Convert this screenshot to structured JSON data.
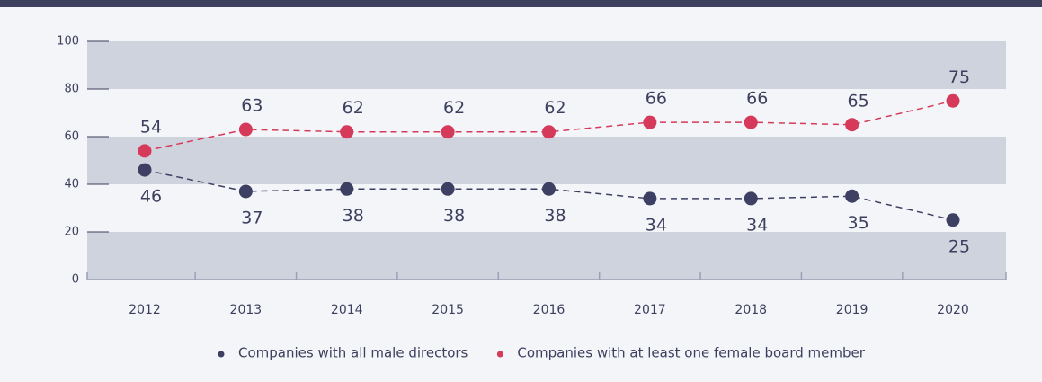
{
  "chart_data": {
    "type": "line",
    "categories": [
      "2012",
      "2013",
      "2014",
      "2015",
      "2016",
      "2017",
      "2018",
      "2019",
      "2020"
    ],
    "series": [
      {
        "name": "Companies with all male directors",
        "color": "#3d3f63",
        "values": [
          46,
          37,
          38,
          38,
          38,
          34,
          34,
          35,
          25
        ]
      },
      {
        "name": "Companies with at least one female board member",
        "color": "#d63a5a",
        "values": [
          54,
          63,
          62,
          62,
          62,
          66,
          66,
          65,
          75
        ]
      }
    ],
    "ylim": [
      0,
      100
    ],
    "yticks": [
      0,
      20,
      40,
      60,
      80,
      100
    ],
    "banded_background": true,
    "band_color": "#cfd3de",
    "line_style": "dashed",
    "legend": "bottom"
  }
}
